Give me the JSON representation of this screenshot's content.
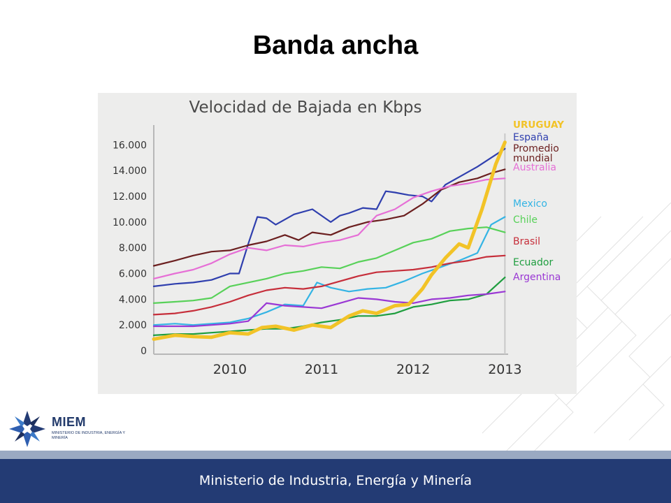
{
  "slide": {
    "title": "Banda ancha",
    "footer": "Ministerio de Industria, Energía y Minería",
    "logo": {
      "name": "MIEM",
      "subtitle": "MINISTERIO DE INDUSTRIA, ENERGÍA Y MINERÍA"
    }
  },
  "chart_data": {
    "type": "line",
    "title": "Velocidad de Bajada en Kbps",
    "xlabel": "",
    "ylabel": "",
    "xlim": [
      2009.17,
      2013.02
    ],
    "ylim": [
      0,
      17000
    ],
    "x_ticks": [
      2010,
      2011,
      2012,
      2013
    ],
    "x_tick_labels": [
      "2010",
      "2011",
      "2012",
      "2013"
    ],
    "y_ticks": [
      0,
      2000,
      4000,
      6000,
      8000,
      10000,
      12000,
      14000,
      16000
    ],
    "y_tick_labels": [
      "0",
      "2.000",
      "4.000",
      "6.000",
      "8.000",
      "10.000",
      "12.000",
      "14.000",
      "16.000"
    ],
    "grid": false,
    "legend": "right, labels at line ends",
    "series": [
      {
        "name": "URUGUAY",
        "color": "#f2c327",
        "x": [
          2009.17,
          2009.4,
          2009.6,
          2009.8,
          2010,
          2010.2,
          2010.35,
          2010.5,
          2010.7,
          2010.9,
          2011.1,
          2011.3,
          2011.45,
          2011.6,
          2011.8,
          2011.95,
          2012.1,
          2012.2,
          2012.35,
          2012.5,
          2012.6,
          2012.75,
          2012.9,
          2013.0
        ],
        "y": [
          900,
          1200,
          1100,
          1050,
          1400,
          1300,
          1800,
          1900,
          1600,
          2000,
          1800,
          2700,
          3100,
          2900,
          3500,
          3600,
          4800,
          5900,
          7200,
          8300,
          8000,
          11000,
          14500,
          16200
        ]
      },
      {
        "name": "España",
        "color": "#2f3fae",
        "x": [
          2009.17,
          2009.4,
          2009.6,
          2009.8,
          2010,
          2010.1,
          2010.2,
          2010.3,
          2010.4,
          2010.5,
          2010.7,
          2010.9,
          2011.1,
          2011.2,
          2011.3,
          2011.45,
          2011.6,
          2011.7,
          2011.8,
          2011.95,
          2012.1,
          2012.2,
          2012.35,
          2012.5,
          2012.7,
          2012.85,
          2013.0
        ],
        "y": [
          5000,
          5200,
          5300,
          5500,
          6000,
          6000,
          8300,
          10400,
          10300,
          9800,
          10600,
          11000,
          10000,
          10500,
          10700,
          11100,
          11000,
          12400,
          12300,
          12100,
          12000,
          11600,
          12900,
          13500,
          14300,
          15000,
          15700
        ]
      },
      {
        "name": "Promedio mundial",
        "color": "#6b1f1f",
        "x": [
          2009.17,
          2009.4,
          2009.6,
          2009.8,
          2010,
          2010.2,
          2010.4,
          2010.6,
          2010.75,
          2010.9,
          2011.1,
          2011.3,
          2011.5,
          2011.7,
          2011.9,
          2012.1,
          2012.3,
          2012.5,
          2012.7,
          2012.85,
          2013.0
        ],
        "y": [
          6600,
          7000,
          7400,
          7700,
          7800,
          8200,
          8500,
          9000,
          8600,
          9200,
          9000,
          9600,
          10000,
          10200,
          10500,
          11400,
          12500,
          13100,
          13400,
          13800,
          14100
        ]
      },
      {
        "name": "Australia",
        "color": "#e66fd6",
        "x": [
          2009.17,
          2009.4,
          2009.6,
          2009.8,
          2010,
          2010.2,
          2010.4,
          2010.6,
          2010.8,
          2011.0,
          2011.2,
          2011.4,
          2011.6,
          2011.8,
          2012.0,
          2012.2,
          2012.4,
          2012.6,
          2012.8,
          2013.0
        ],
        "y": [
          5600,
          6000,
          6300,
          6800,
          7500,
          8000,
          7800,
          8200,
          8100,
          8400,
          8600,
          9000,
          10500,
          11000,
          11900,
          12400,
          12800,
          13000,
          13300,
          13400
        ]
      },
      {
        "name": "Mexico",
        "color": "#34b4e4",
        "x": [
          2009.17,
          2009.4,
          2009.6,
          2009.8,
          2010,
          2010.2,
          2010.4,
          2010.6,
          2010.8,
          2010.95,
          2011.1,
          2011.3,
          2011.5,
          2011.7,
          2011.9,
          2012.1,
          2012.3,
          2012.5,
          2012.7,
          2012.85,
          2013.0
        ],
        "y": [
          2000,
          2100,
          2000,
          2100,
          2200,
          2500,
          3000,
          3600,
          3500,
          5300,
          4900,
          4600,
          4800,
          4900,
          5400,
          6000,
          6500,
          7000,
          7600,
          9800,
          10400
        ]
      },
      {
        "name": "Chile",
        "color": "#58d159",
        "x": [
          2009.17,
          2009.4,
          2009.6,
          2009.8,
          2010,
          2010.2,
          2010.4,
          2010.6,
          2010.8,
          2011.0,
          2011.2,
          2011.4,
          2011.6,
          2011.8,
          2012.0,
          2012.2,
          2012.4,
          2012.6,
          2012.8,
          2013.0
        ],
        "y": [
          3700,
          3800,
          3900,
          4100,
          5000,
          5300,
          5600,
          6000,
          6200,
          6500,
          6400,
          6900,
          7200,
          7800,
          8400,
          8700,
          9300,
          9500,
          9600,
          9200
        ]
      },
      {
        "name": "Brasil",
        "color": "#c62e3a",
        "x": [
          2009.17,
          2009.4,
          2009.6,
          2009.8,
          2010,
          2010.2,
          2010.4,
          2010.6,
          2010.8,
          2011.0,
          2011.2,
          2011.4,
          2011.6,
          2011.8,
          2012.0,
          2012.2,
          2012.4,
          2012.6,
          2012.8,
          2013.0
        ],
        "y": [
          2800,
          2900,
          3100,
          3400,
          3800,
          4300,
          4700,
          4900,
          4800,
          5000,
          5400,
          5800,
          6100,
          6200,
          6300,
          6500,
          6800,
          7000,
          7300,
          7400
        ]
      },
      {
        "name": "Ecuador",
        "color": "#1f9e3f",
        "x": [
          2009.17,
          2009.4,
          2009.6,
          2009.8,
          2010,
          2010.2,
          2010.4,
          2010.6,
          2010.8,
          2011.0,
          2011.2,
          2011.4,
          2011.6,
          2011.8,
          2012.0,
          2012.2,
          2012.4,
          2012.6,
          2012.8,
          2013.0
        ],
        "y": [
          1200,
          1300,
          1300,
          1400,
          1500,
          1600,
          1700,
          1700,
          1900,
          2200,
          2400,
          2700,
          2700,
          2900,
          3400,
          3600,
          3900,
          4000,
          4400,
          5700
        ]
      },
      {
        "name": "Argentina",
        "color": "#9a38d4",
        "x": [
          2009.17,
          2009.4,
          2009.6,
          2009.8,
          2010,
          2010.2,
          2010.3,
          2010.4,
          2010.6,
          2010.8,
          2011.0,
          2011.2,
          2011.4,
          2011.6,
          2011.8,
          2012.0,
          2012.2,
          2012.4,
          2012.6,
          2012.8,
          2013.0
        ],
        "y": [
          1900,
          1900,
          1900,
          2000,
          2100,
          2300,
          3000,
          3700,
          3500,
          3400,
          3300,
          3700,
          4100,
          4000,
          3800,
          3700,
          4000,
          4100,
          4300,
          4400,
          4600
        ]
      }
    ]
  }
}
